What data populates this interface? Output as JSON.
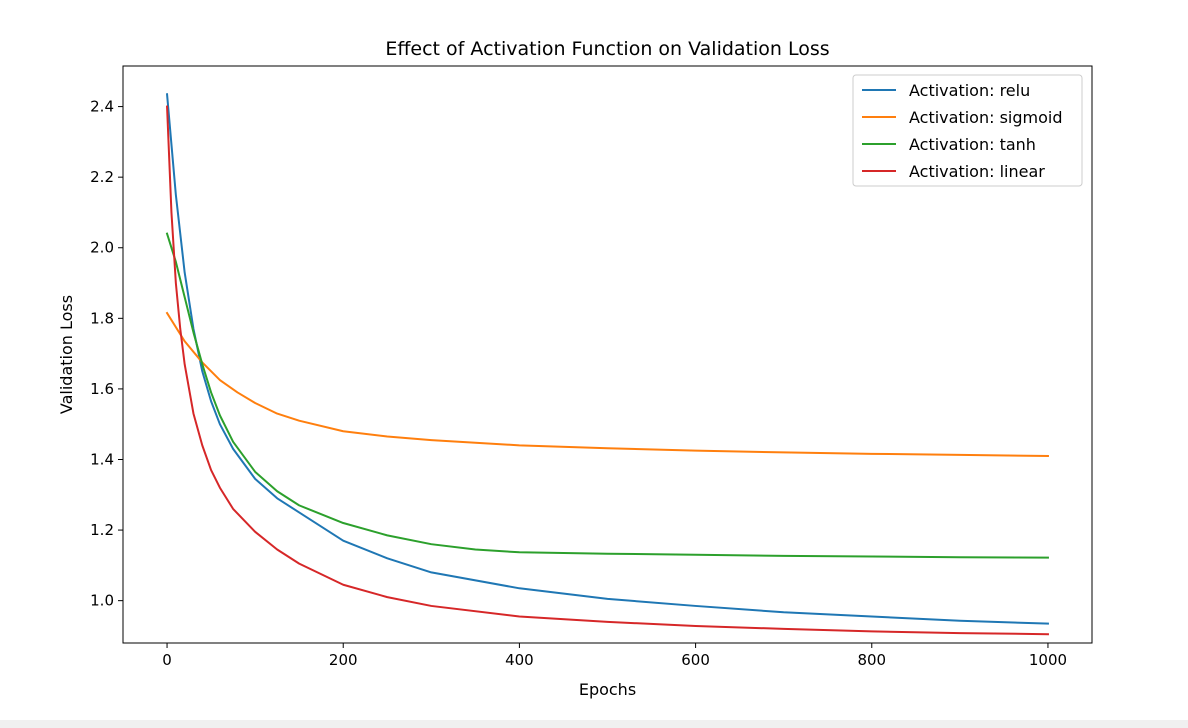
{
  "chart_data": {
    "type": "line",
    "title": "Effect of Activation Function on Validation Loss",
    "xlabel": "Epochs",
    "ylabel": "Validation Loss",
    "xlim": [
      -50,
      1050
    ],
    "ylim": [
      0.88,
      2.515
    ],
    "xticks": [
      0,
      200,
      400,
      600,
      800,
      1000
    ],
    "yticks": [
      1.0,
      1.2,
      1.4,
      1.6,
      1.8,
      2.0,
      2.2,
      2.4
    ],
    "xtick_labels": [
      "0",
      "200",
      "400",
      "600",
      "800",
      "1000"
    ],
    "ytick_labels": [
      "1.0",
      "1.2",
      "1.4",
      "1.6",
      "1.8",
      "2.0",
      "2.2",
      "2.4"
    ],
    "grid": false,
    "legend_position": "top-right",
    "series": [
      {
        "name": "Activation: relu",
        "color": "#1f77b4",
        "x": [
          0,
          10,
          20,
          30,
          40,
          50,
          60,
          75,
          100,
          125,
          150,
          200,
          250,
          300,
          400,
          500,
          600,
          700,
          800,
          900,
          1000
        ],
        "y": [
          2.435,
          2.15,
          1.93,
          1.77,
          1.65,
          1.565,
          1.5,
          1.43,
          1.345,
          1.29,
          1.25,
          1.17,
          1.12,
          1.08,
          1.035,
          1.005,
          0.985,
          0.967,
          0.955,
          0.943,
          0.935
        ]
      },
      {
        "name": "Activation: sigmoid",
        "color": "#ff7f0e",
        "x": [
          0,
          20,
          40,
          60,
          80,
          100,
          125,
          150,
          200,
          250,
          300,
          400,
          500,
          600,
          700,
          800,
          900,
          1000
        ],
        "y": [
          1.815,
          1.735,
          1.675,
          1.625,
          1.59,
          1.56,
          1.53,
          1.51,
          1.48,
          1.465,
          1.455,
          1.44,
          1.432,
          1.425,
          1.42,
          1.416,
          1.413,
          1.41
        ]
      },
      {
        "name": "Activation: tanh",
        "color": "#2ca02c",
        "x": [
          0,
          10,
          20,
          30,
          40,
          50,
          60,
          75,
          100,
          125,
          150,
          200,
          250,
          300,
          350,
          400,
          500,
          600,
          700,
          800,
          900,
          1000
        ],
        "y": [
          2.04,
          1.96,
          1.86,
          1.76,
          1.67,
          1.59,
          1.525,
          1.45,
          1.365,
          1.31,
          1.27,
          1.22,
          1.185,
          1.16,
          1.145,
          1.137,
          1.133,
          1.13,
          1.127,
          1.125,
          1.123,
          1.122
        ]
      },
      {
        "name": "Activation: linear",
        "color": "#d62728",
        "x": [
          0,
          5,
          10,
          15,
          20,
          30,
          40,
          50,
          60,
          75,
          100,
          125,
          150,
          200,
          250,
          300,
          400,
          500,
          600,
          700,
          800,
          900,
          1000
        ],
        "y": [
          2.4,
          2.1,
          1.9,
          1.77,
          1.67,
          1.53,
          1.44,
          1.37,
          1.32,
          1.26,
          1.195,
          1.145,
          1.105,
          1.045,
          1.01,
          0.985,
          0.955,
          0.94,
          0.928,
          0.92,
          0.913,
          0.908,
          0.905
        ]
      }
    ]
  }
}
